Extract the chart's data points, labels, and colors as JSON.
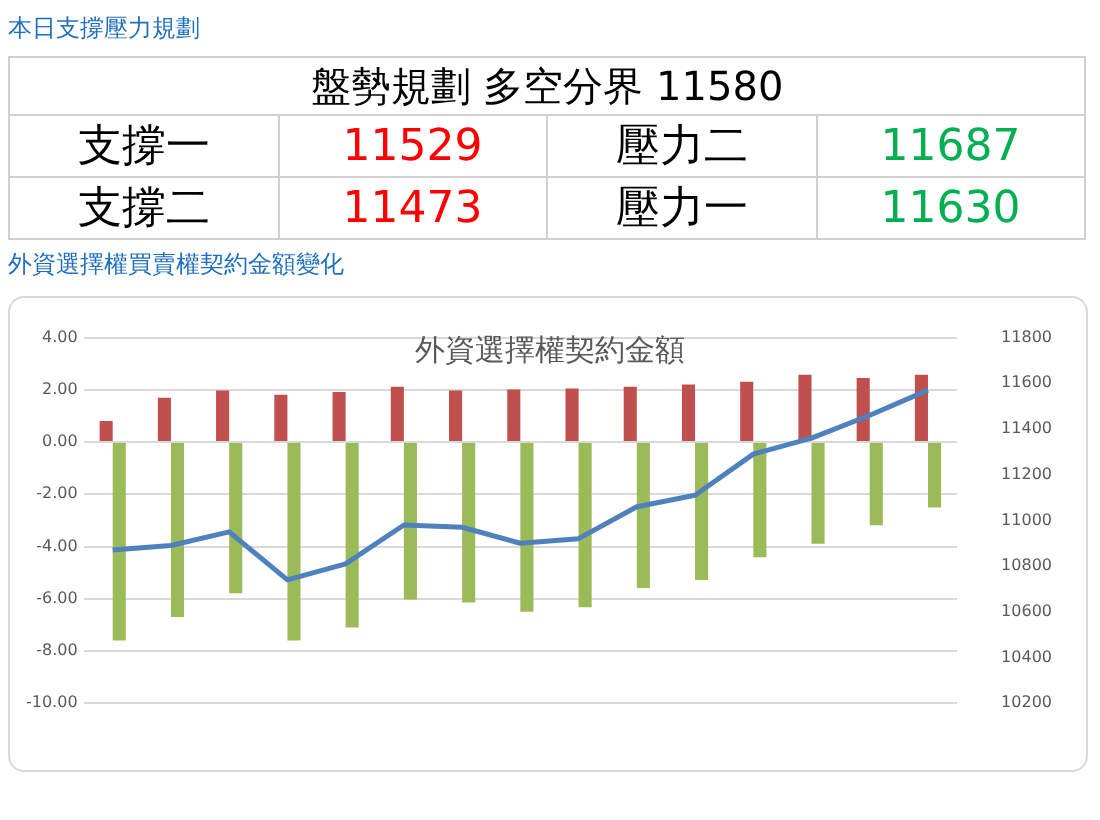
{
  "chart_data": [
    {
      "type": "other",
      "title": "本日支撐壓力規劃",
      "annotations": [
        "盤勢規劃 多空分界 11580",
        "支撐一",
        "11529",
        "壓力二",
        "11687",
        "支撐二",
        "11473",
        "壓力一",
        "11630"
      ]
    },
    {
      "type": "bar",
      "subtitle": "外資選擇權買賣權契約金額變化",
      "title": "外資選擇權契約金額",
      "categories": [
        null,
        null,
        null,
        null,
        null,
        null,
        null,
        null,
        null,
        null,
        null,
        null,
        null,
        null,
        null
      ],
      "series": [
        {
          "type": "bar",
          "color": "#c0504d",
          "values": [
            0.81,
            1.7,
            1.97,
            1.81,
            1.92,
            2.12,
            1.97,
            2.01,
            2.05,
            2.12,
            2.2,
            2.31,
            2.58,
            2.45,
            2.58
          ]
        },
        {
          "type": "bar",
          "color": "#9bbb59",
          "values": [
            -7.6,
            -6.7,
            -5.79,
            -7.6,
            -7.1,
            -6.03,
            -6.14,
            -6.5,
            -6.33,
            -5.59,
            -5.28,
            -4.41,
            -3.89,
            -3.19,
            -2.51
          ]
        },
        {
          "type": "line",
          "axis": "y2",
          "color": "#4f81bd",
          "values": [
            10870,
            10890,
            10950,
            10740,
            10810,
            10980,
            10970,
            10900,
            10920,
            11060,
            11110,
            11290,
            11360,
            11460,
            11570
          ]
        }
      ],
      "ylim": [
        -10,
        4
      ],
      "yticks": [
        {
          "value": -10,
          "label": "-10.00"
        },
        {
          "value": -8,
          "label": "-8.00"
        },
        {
          "value": -6,
          "label": "-6.00"
        },
        {
          "value": -4,
          "label": "-4.00"
        },
        {
          "value": -2,
          "label": "-2.00"
        },
        {
          "value": 0,
          "label": "0.00"
        },
        {
          "value": 2,
          "label": "2.00"
        },
        {
          "value": 4,
          "label": "4.00"
        }
      ],
      "y2lim": [
        10200,
        11800
      ],
      "y2ticks": [
        10200,
        10400,
        10600,
        10800,
        11000,
        11200,
        11400,
        11600,
        11800
      ],
      "grid": "y",
      "marker": "none",
      "line_style": "solid",
      "legend": false
    }
  ]
}
